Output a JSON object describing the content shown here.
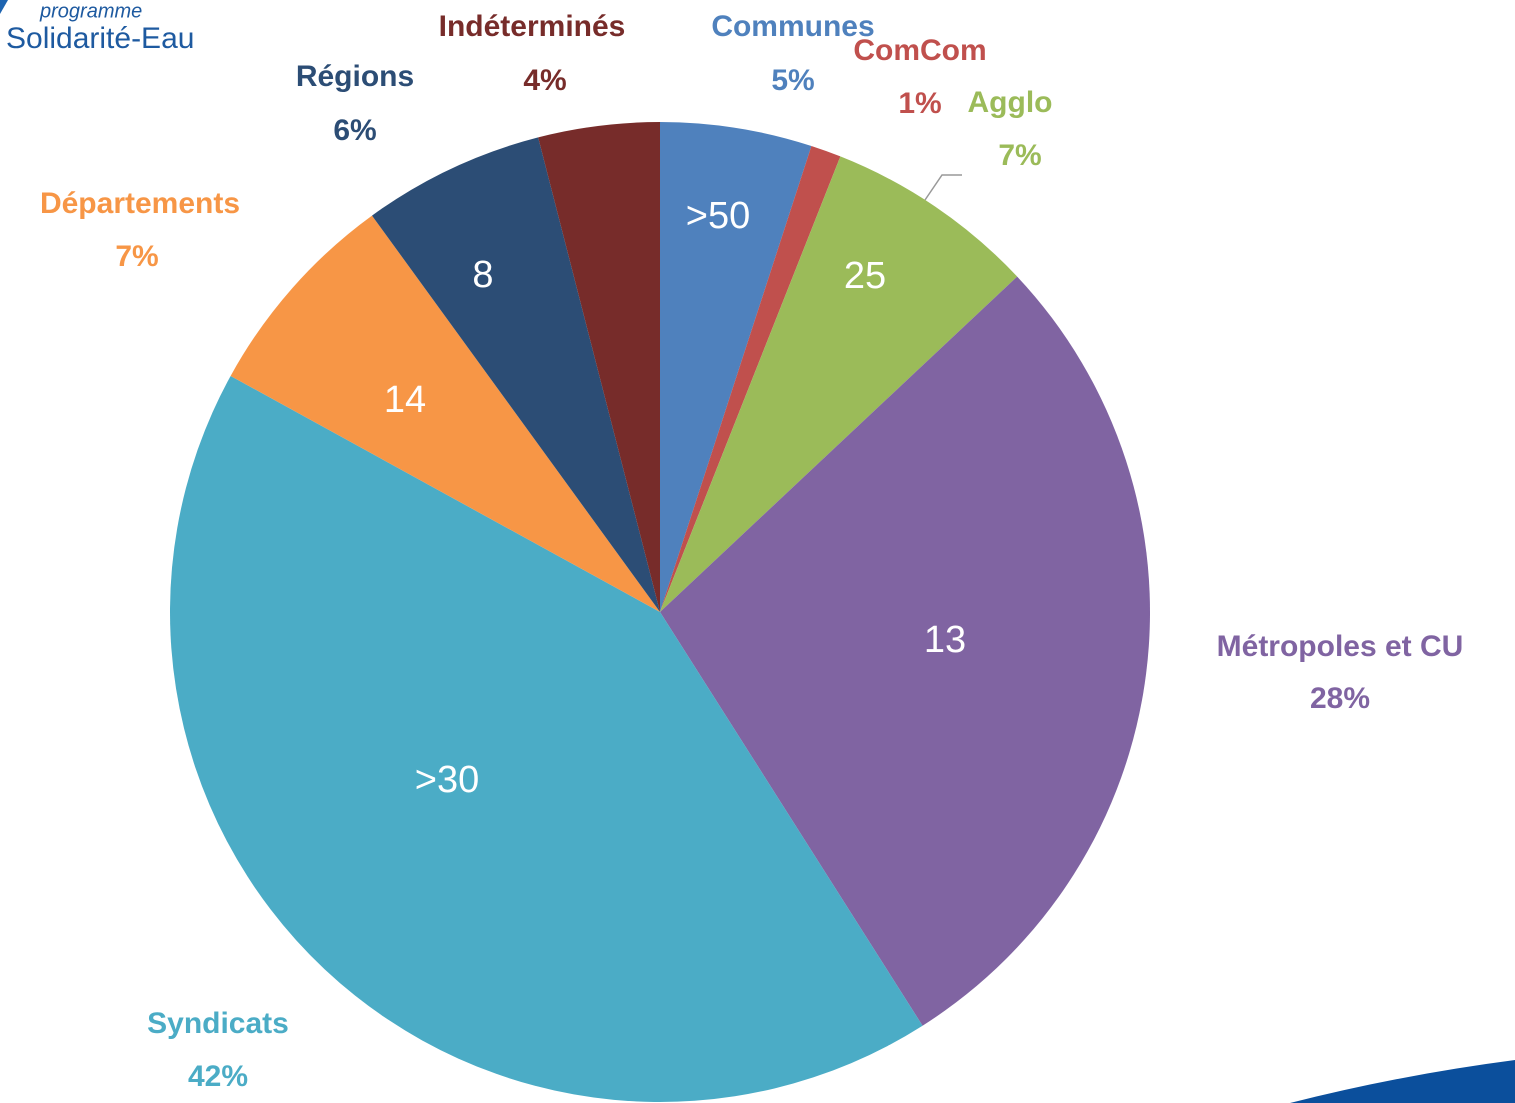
{
  "logo": {
    "line1": "programme",
    "line2": "Solidarité-Eau"
  },
  "chart_data": {
    "type": "pie",
    "categories": [
      "Communes",
      "ComCom",
      "Agglo",
      "Métropoles et CU",
      "Syndicats",
      "Départements",
      "Régions",
      "Indéterminés"
    ],
    "values": [
      5,
      1,
      7,
      28,
      42,
      7,
      6,
      4
    ],
    "value_labels": [
      "5%",
      "1%",
      "7%",
      "28%",
      "42%",
      "7%",
      "6%",
      "4%"
    ],
    "inner_labels": [
      ">50",
      null,
      "25",
      "13",
      ">30",
      "14",
      "8",
      null
    ],
    "colors": [
      "#4f81bd",
      "#c0504d",
      "#9bbb59",
      "#8064a2",
      "#4bacc6",
      "#f79646",
      "#2c4d75",
      "#772c2a"
    ]
  }
}
